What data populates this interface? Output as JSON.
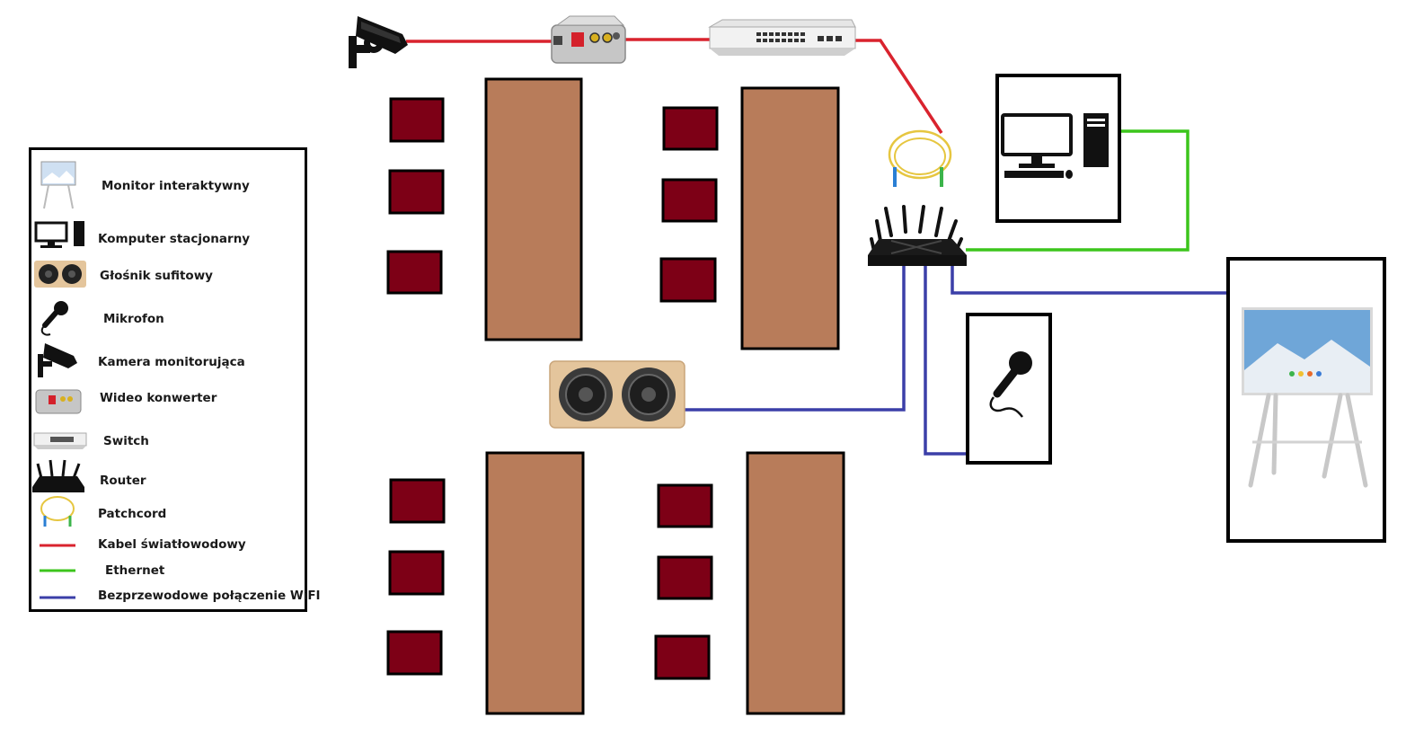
{
  "legend": {
    "items": [
      {
        "icon": "interactive-monitor-icon",
        "label": "Monitor interaktywny"
      },
      {
        "icon": "desktop-computer-icon",
        "label": "Komputer stacjonarny"
      },
      {
        "icon": "ceiling-speaker-icon",
        "label": "Głośnik sufitowy"
      },
      {
        "icon": "microphone-icon",
        "label": "Mikrofon"
      },
      {
        "icon": "cctv-camera-icon",
        "label": "Kamera monitorująca"
      },
      {
        "icon": "video-converter-icon",
        "label": "Wideo konwerter"
      },
      {
        "icon": "switch-icon",
        "label": "Switch"
      },
      {
        "icon": "router-icon",
        "label": "Router"
      },
      {
        "icon": "patchcord-icon",
        "label": "Patchcord"
      },
      {
        "icon": "fiber-cable-line",
        "label": "Kabel światłowodowy"
      },
      {
        "icon": "ethernet-cable-line",
        "label": "Ethernet"
      },
      {
        "icon": "wifi-connection-line",
        "label": "Bezprzewodowe połączenie WiFI"
      }
    ]
  },
  "colors": {
    "fiber": "#d9232e",
    "ethernet": "#3cc51c",
    "wifi": "#3b3fa8",
    "desk": "#b87c5a",
    "chair": "#7d0016",
    "border": "#000000"
  }
}
